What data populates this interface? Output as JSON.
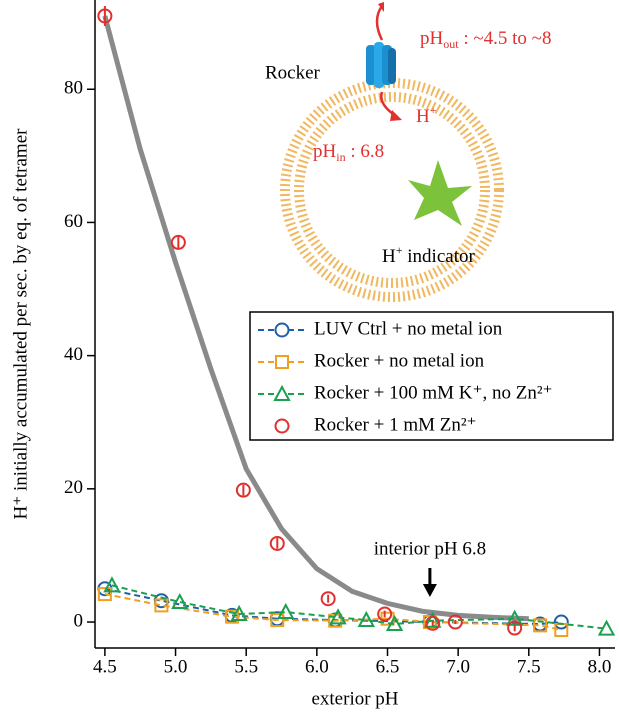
{
  "chart_data": {
    "type": "scatter",
    "xlabel": "exterior pH",
    "ylabel": "H⁺ initially accumulated per sec. by eq. of tetramer",
    "xlim": [
      4.43,
      8.11
    ],
    "ylim": [
      -3.9,
      93.4
    ],
    "xticks": [
      4.5,
      {
        "value": 5,
        "label": "5.0"
      },
      5.5,
      {
        "value": 6,
        "label": "6.0"
      },
      6.5,
      {
        "value": 7,
        "label": "7.0"
      },
      7.5,
      {
        "value": 8,
        "label": "8.0"
      }
    ],
    "yticks": [
      0,
      20,
      40,
      60,
      80
    ],
    "grid": false,
    "legend": "right",
    "series": [
      {
        "name": "LUV Ctrl + no metal ion",
        "color": "#1f5fa8",
        "marker": "circle",
        "dashed": true,
        "x": [
          4.5,
          4.9,
          5.4,
          5.72,
          6.13,
          6.8,
          7.58,
          7.73
        ],
        "values": [
          5,
          3.2,
          1,
          0.5,
          0.3,
          0,
          -0.3,
          0
        ]
      },
      {
        "name": "Rocker + no metal ion",
        "color": "#f0a020",
        "marker": "square",
        "dashed": true,
        "x": [
          4.5,
          4.9,
          5.4,
          5.72,
          6.13,
          6.5,
          6.8,
          7.58,
          7.73
        ],
        "values": [
          4.2,
          2.5,
          0.8,
          0.3,
          0.2,
          0.5,
          0,
          -0.5,
          -1.2
        ]
      },
      {
        "name": "Rocker + 100 mM K⁺, no Zn²⁺",
        "color": "#1aa050",
        "marker": "triangle",
        "dashed": true,
        "x": [
          4.55,
          5.03,
          5.45,
          5.78,
          6.15,
          6.35,
          6.55,
          6.82,
          7.4,
          8.05
        ],
        "values": [
          5.5,
          3,
          1.2,
          1.5,
          0.7,
          0.3,
          -0.3,
          0.2,
          0.5,
          -1
        ]
      },
      {
        "name": "Rocker + 1 mM Zn²⁺",
        "color": "#e03030",
        "marker": "circle",
        "dashed": false,
        "x": [
          4.5,
          5.02,
          5.48,
          5.72,
          6.08,
          6.48,
          6.82,
          6.98,
          7.4
        ],
        "values": [
          91,
          57,
          19.8,
          11.8,
          3.5,
          1.2,
          -0.2,
          0,
          -0.9
        ],
        "errors": [
          1.5,
          1,
          0.8,
          0.8,
          0.6,
          0.5,
          0.4,
          0.3,
          0.5
        ]
      }
    ],
    "fit": {
      "color": "#8a8a8a",
      "x": [
        4.5,
        4.75,
        5.0,
        5.25,
        5.5,
        5.75,
        6.0,
        6.25,
        6.5,
        6.75,
        7.0,
        7.25,
        7.5
      ],
      "values": [
        91,
        71,
        54,
        38,
        23,
        14,
        8,
        4.6,
        2.8,
        1.6,
        1,
        0.7,
        0.5
      ]
    },
    "annotation": {
      "text": "interior pH 6.8",
      "x": 6.8
    },
    "inset": {
      "rocker": "Rocker",
      "ph_out": {
        "base": "pH",
        "sub": "out",
        "rest": " : ~4.5 to ~8"
      },
      "h_plus": {
        "base": "H",
        "sup": "+"
      },
      "ph_in": {
        "base": "pH",
        "sub": "in",
        "rest": " : 6.8"
      },
      "indicator": {
        "base": "H",
        "sup": "+",
        "rest": " indicator"
      }
    }
  }
}
